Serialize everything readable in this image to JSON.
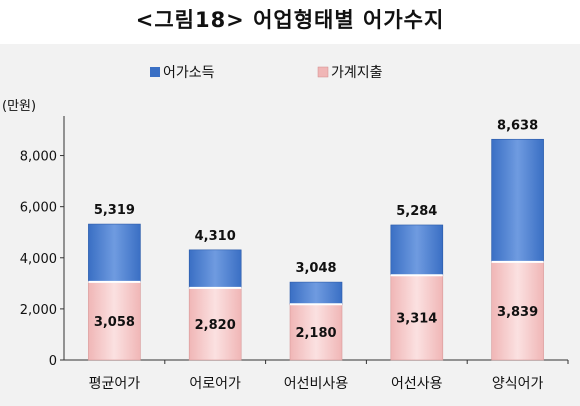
{
  "title": "<그림18> 어업형태별 어가수지",
  "colors": {
    "income": "#3a6fc4",
    "income_light": "#6f9be0",
    "expenditure": "#f0b6b6",
    "expenditure_light": "#fbe1e1",
    "background": "#f2f2f2"
  },
  "chart_data": {
    "type": "bar",
    "title": "",
    "xlabel": "",
    "ylabel": "(만원)",
    "ylim": [
      0,
      9000
    ],
    "yticks": [
      0,
      2000,
      4000,
      6000,
      8000
    ],
    "ytick_labels": [
      "0",
      "2,000",
      "4,000",
      "6,000",
      "8,000"
    ],
    "categories": [
      "평균어가",
      "어로어가",
      "어선비사용",
      "어선사용",
      "양식어가"
    ],
    "series": [
      {
        "name": "가계지출",
        "values": [
          3058,
          2820,
          2180,
          3314,
          3839
        ],
        "labels": [
          "3,058",
          "2,820",
          "2,180",
          "3,314",
          "3,839"
        ]
      },
      {
        "name": "어가소득",
        "values": [
          5319,
          4310,
          3048,
          5284,
          8638
        ],
        "labels": [
          "5,319",
          "4,310",
          "3,048",
          "5,284",
          "8,638"
        ]
      }
    ],
    "legend_position": "top-center",
    "grid": false
  }
}
